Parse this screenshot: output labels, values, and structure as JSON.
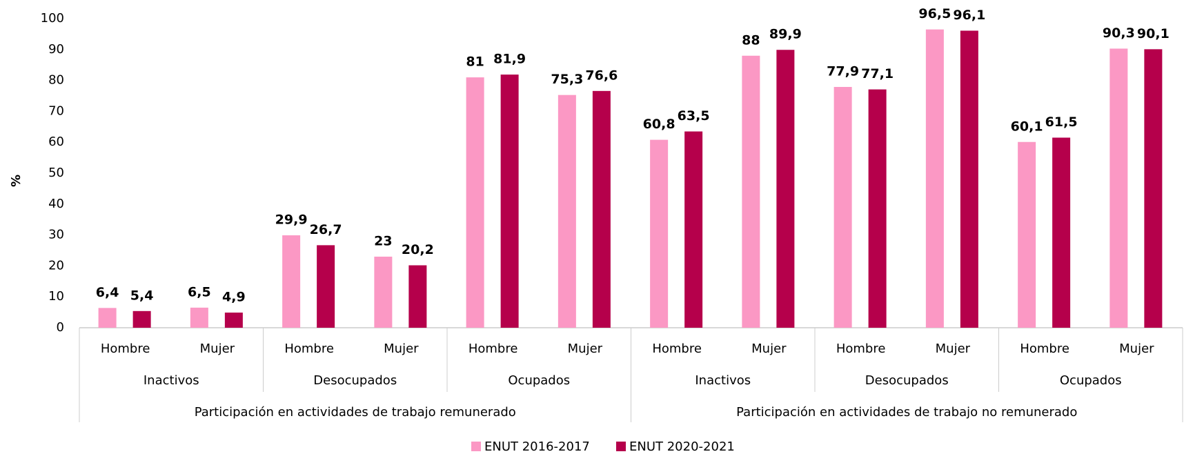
{
  "chart_data": {
    "type": "bar",
    "y_label": "%",
    "categories": [
      "Hombre",
      "Mujer",
      "Hombre",
      "Mujer",
      "Hombre",
      "Mujer",
      "Hombre",
      "Mujer",
      "Hombre",
      "Mujer",
      "Hombre",
      "Mujer"
    ],
    "groups": [
      "Inactivos",
      "Desocupados",
      "Ocupados",
      "Inactivos",
      "Desocupados",
      "Ocupados"
    ],
    "supergroups": [
      "Participación en actividades de trabajo remunerado",
      "Participación en actividades de trabajo no remunerado"
    ],
    "series": [
      {
        "name": "ENUT 2016-2017",
        "color": "#fb98c4",
        "values": [
          6.4,
          6.5,
          29.9,
          23,
          81,
          75.3,
          60.8,
          88,
          77.9,
          96.5,
          60.1,
          90.3
        ],
        "value_labels": [
          "6,4",
          "6,5",
          "29,9",
          "23",
          "81",
          "75,3",
          "60,8",
          "88",
          "77,9",
          "96,5",
          "60,1",
          "90,3"
        ]
      },
      {
        "name": "ENUT 2020-2021",
        "color": "#b5004b",
        "values": [
          5.4,
          4.9,
          26.7,
          20.2,
          81.9,
          76.6,
          63.5,
          89.9,
          77.1,
          96.1,
          61.5,
          90.1
        ],
        "value_labels": [
          "5,4",
          "4,9",
          "26,7",
          "20,2",
          "81,9",
          "76,6",
          "63,5",
          "89,9",
          "77,1",
          "96,1",
          "61,5",
          "90,1"
        ]
      }
    ],
    "ylim": [
      0,
      100
    ],
    "yticks": [
      0,
      10,
      20,
      30,
      40,
      50,
      60,
      70,
      80,
      90,
      100
    ],
    "grid": false
  }
}
